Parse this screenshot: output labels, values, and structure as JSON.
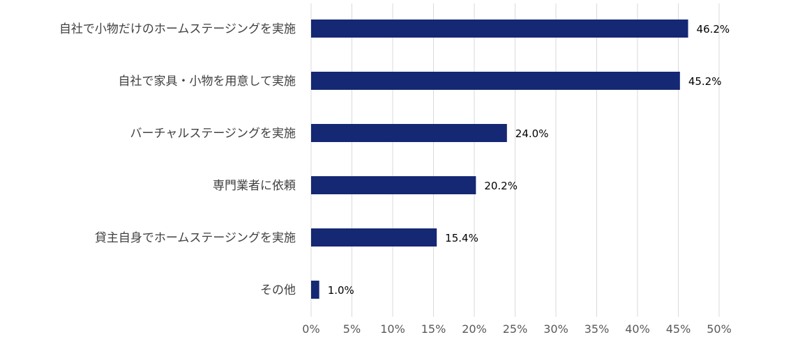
{
  "chart_data": {
    "type": "bar",
    "orientation": "horizontal",
    "categories": [
      "自社で小物だけのホームステージングを実施",
      "自社で家具・小物を用意して実施",
      "バーチャルステージングを実施",
      "専門業者に依頼",
      "貸主自身でホームステージングを実施",
      "その他"
    ],
    "values": [
      46.2,
      45.2,
      24.0,
      20.2,
      15.4,
      1.0
    ],
    "data_labels": [
      "46.2%",
      "45.2%",
      "24.0%",
      "20.2%",
      "15.4%",
      "1.0%"
    ],
    "xlim": [
      0,
      50
    ],
    "x_ticks": [
      0,
      5,
      10,
      15,
      20,
      25,
      30,
      35,
      40,
      45,
      50
    ],
    "x_tick_labels": [
      "0%",
      "5%",
      "10%",
      "15%",
      "20%",
      "25%",
      "30%",
      "35%",
      "40%",
      "45%",
      "50%"
    ],
    "grid": true,
    "legend": "none",
    "colors": {
      "bar": "#152873",
      "grid": "#d9d9d9"
    }
  }
}
